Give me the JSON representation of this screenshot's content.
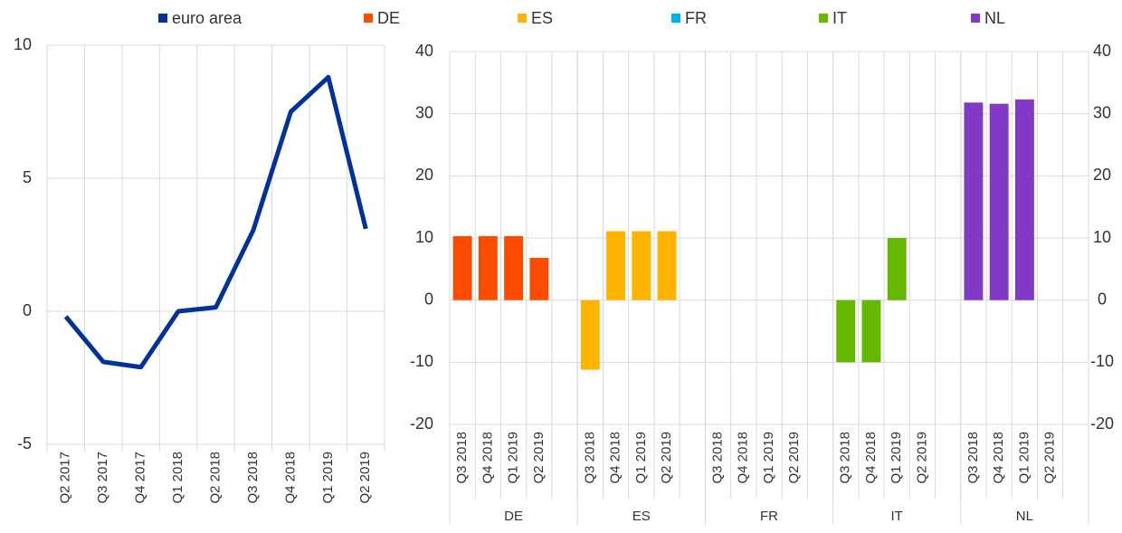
{
  "chart_data": [
    {
      "type": "line",
      "categories": [
        "Q2 2017",
        "Q3 2017",
        "Q4 2017",
        "Q1 2018",
        "Q2 2018",
        "Q3 2018",
        "Q4 2018",
        "Q1 2019",
        "Q2 2019"
      ],
      "series": [
        {
          "name": "euro area",
          "color": "#003299",
          "values": [
            -0.2,
            -1.9,
            -2.1,
            0,
            0.15,
            3.05,
            7.5,
            8.8,
            3.1
          ]
        }
      ],
      "ylim": [
        -5,
        10
      ],
      "yticks": [
        -5,
        0,
        5,
        10
      ],
      "grid": true
    },
    {
      "type": "bar",
      "groups": [
        "DE",
        "ES",
        "FR",
        "IT",
        "NL"
      ],
      "categories": [
        "Q3 2018",
        "Q4 2018",
        "Q1 2019",
        "Q2 2019"
      ],
      "series": [
        {
          "name": "DE",
          "color": "#ff4b00",
          "values": [
            10.3,
            10.3,
            10.3,
            6.8
          ]
        },
        {
          "name": "ES",
          "color": "#ffb400",
          "values": [
            -11.2,
            11.1,
            11.1,
            11.1
          ]
        },
        {
          "name": "FR",
          "color": "#00b1ea",
          "values": [
            null,
            null,
            null,
            null
          ]
        },
        {
          "name": "IT",
          "color": "#65b800",
          "values": [
            -10,
            -10,
            10,
            null
          ]
        },
        {
          "name": "NL",
          "color": "#8139c6",
          "values": [
            31.8,
            31.6,
            32.3,
            null
          ]
        }
      ],
      "ylim": [
        -20,
        40
      ],
      "yticks": [
        -20,
        -10,
        0,
        10,
        20,
        30,
        40
      ],
      "grid": true
    }
  ]
}
